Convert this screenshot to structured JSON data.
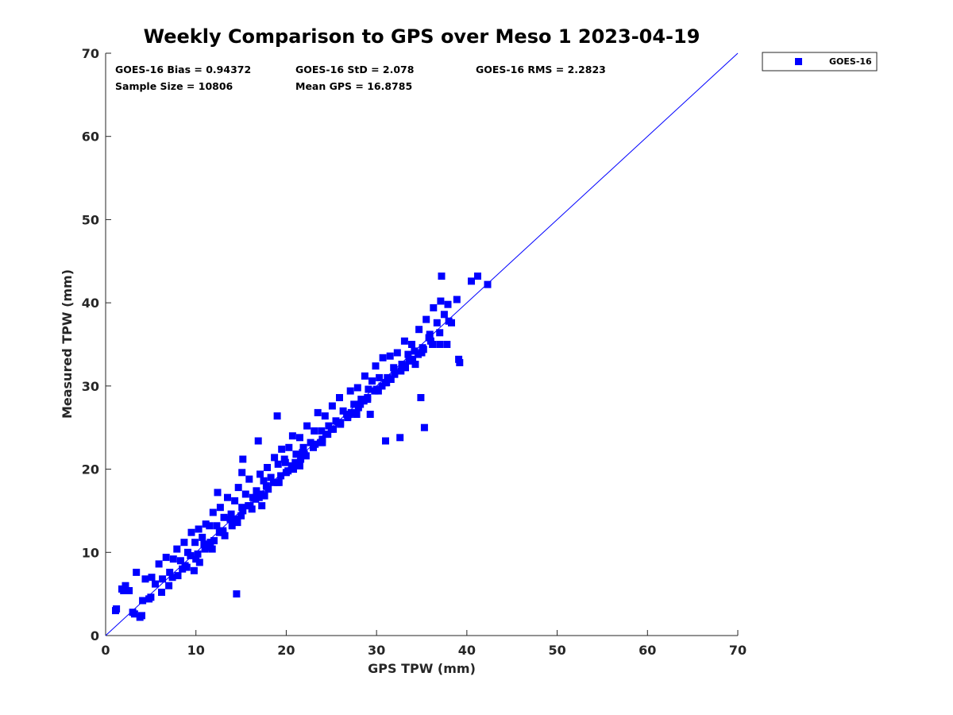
{
  "chart_data": {
    "type": "scatter",
    "title": "Weekly Comparison to GPS over Meso 1 2023-04-19",
    "xlabel": "GPS TPW (mm)",
    "ylabel": "Measured TPW (mm)",
    "xlim": [
      0,
      70
    ],
    "ylim": [
      0,
      70
    ],
    "xticks": [
      "0",
      "10",
      "20",
      "30",
      "40",
      "50",
      "60",
      "70"
    ],
    "yticks": [
      "0",
      "10",
      "20",
      "30",
      "40",
      "50",
      "60",
      "70"
    ],
    "legend": {
      "position": "outside-top-right",
      "entries": [
        "GOES-16"
      ]
    },
    "reference_line": {
      "name": "1:1 line",
      "from": [
        0,
        0
      ],
      "to": [
        70,
        70
      ],
      "color": "#0000ff"
    },
    "statistics": {
      "bias": "GOES-16 Bias = 0.94372",
      "std": "GOES-16 StD = 2.078",
      "rms": "GOES-16 RMS = 2.2823",
      "sample_size": "Sample Size = 10806",
      "mean_gps": "Mean GPS = 16.8785"
    },
    "series": [
      {
        "name": "GOES-16",
        "color": "#0000ff",
        "marker": "square",
        "x": [
          1.2,
          1.8,
          2.2,
          2.6,
          3.0,
          3.4,
          3.8,
          4.1,
          4.4,
          4.8,
          5.1,
          5.5,
          5.9,
          6.3,
          6.7,
          7.1,
          7.5,
          7.9,
          8.3,
          8.7,
          9.1,
          9.5,
          9.9,
          10.3,
          10.7,
          11.1,
          11.5,
          11.9,
          12.3,
          12.7,
          13.1,
          13.5,
          13.9,
          14.3,
          14.7,
          15.1,
          15.5,
          15.9,
          16.3,
          16.7,
          17.1,
          17.5,
          17.9,
          18.3,
          18.7,
          19.1,
          19.5,
          19.9,
          20.3,
          20.7,
          21.1,
          21.5,
          21.9,
          22.3,
          22.7,
          23.1,
          23.5,
          23.9,
          24.3,
          24.7,
          25.1,
          25.5,
          25.9,
          26.3,
          26.7,
          27.1,
          27.5,
          27.9,
          28.3,
          28.7,
          29.1,
          29.5,
          29.9,
          30.3,
          30.7,
          31.1,
          31.5,
          31.9,
          32.3,
          32.7,
          33.1,
          33.5,
          33.9,
          34.3,
          34.7,
          35.1,
          35.5,
          35.9,
          36.3,
          36.7,
          37.1,
          37.5,
          37.9,
          38.3,
          39.2,
          40.5,
          41.2,
          42.3,
          1.1,
          3.2,
          4.0,
          2.0,
          5.0,
          6.2,
          7.0,
          8.0,
          9.0,
          10.0,
          11.0,
          12.0,
          13.0,
          14.0,
          15.0,
          16.0,
          17.0,
          18.0,
          19.0,
          20.0,
          21.0,
          22.0,
          23.0,
          24.0,
          25.0,
          26.0,
          27.0,
          28.0,
          29.0,
          30.0,
          31.0,
          32.0,
          33.0,
          34.0,
          35.0,
          36.0,
          37.0,
          38.0,
          8.5,
          9.4,
          10.9,
          12.6,
          13.8,
          15.2,
          16.6,
          17.8,
          19.4,
          20.6,
          21.8,
          23.2,
          24.4,
          25.8,
          27.2,
          28.6,
          30.2,
          31.6,
          33.2,
          34.6,
          36.2,
          10.4,
          11.8,
          13.2,
          14.6,
          16.2,
          17.6,
          19.2,
          20.8,
          22.2,
          23.8,
          25.2,
          26.8,
          28.2,
          29.8,
          31.2,
          32.8,
          34.2,
          35.8,
          7.4,
          8.8,
          10.2,
          11.6,
          13.0,
          14.4,
          15.8,
          17.2,
          18.6,
          20.2,
          21.6,
          23.0,
          24.6,
          26.0,
          27.6,
          29.0,
          30.6,
          32.0,
          33.6,
          35.2,
          37.2,
          38.9,
          39.1,
          37.0,
          37.8,
          35.3,
          31.0,
          32.6,
          34.9,
          29.3,
          26.8,
          21.5,
          19.0,
          16.9,
          15.1,
          12.4,
          11.2,
          9.8,
          14.5,
          17.3,
          19.8,
          24.0,
          27.8,
          15.2
        ],
        "y": [
          3.2,
          5.6,
          6.0,
          5.4,
          2.8,
          7.6,
          2.2,
          4.2,
          6.8,
          4.4,
          7.0,
          6.2,
          8.6,
          6.8,
          9.4,
          7.6,
          9.2,
          10.4,
          9.0,
          11.2,
          10.0,
          12.4,
          11.2,
          12.8,
          11.8,
          13.4,
          13.2,
          14.8,
          13.2,
          15.4,
          14.2,
          16.6,
          14.6,
          16.2,
          17.8,
          15.4,
          17.0,
          18.8,
          16.6,
          17.4,
          19.4,
          18.6,
          20.2,
          19.0,
          21.4,
          20.6,
          22.4,
          20.8,
          22.6,
          24.0,
          21.8,
          23.8,
          22.6,
          25.2,
          23.2,
          24.6,
          26.8,
          24.6,
          26.4,
          25.2,
          27.6,
          25.8,
          28.6,
          27.0,
          26.6,
          29.4,
          27.8,
          29.8,
          28.4,
          31.2,
          29.6,
          30.6,
          32.4,
          31.0,
          33.4,
          30.4,
          33.6,
          32.2,
          34.0,
          31.8,
          35.4,
          33.8,
          35.0,
          32.6,
          36.8,
          34.6,
          38.0,
          36.2,
          39.4,
          37.6,
          40.2,
          38.6,
          39.8,
          37.6,
          32.8,
          42.6,
          43.2,
          42.2,
          3.0,
          2.6,
          2.4,
          5.4,
          4.6,
          5.2,
          6.0,
          7.2,
          8.2,
          9.2,
          10.4,
          11.4,
          12.4,
          13.2,
          14.4,
          15.6,
          16.6,
          17.6,
          18.4,
          19.6,
          20.8,
          21.8,
          22.6,
          23.6,
          24.8,
          25.6,
          26.6,
          27.4,
          28.4,
          29.6,
          30.4,
          31.4,
          32.4,
          33.2,
          34.0,
          35.4,
          36.4,
          37.8,
          8.0,
          9.6,
          11.0,
          12.4,
          14.0,
          15.0,
          16.4,
          18.0,
          19.2,
          20.4,
          22.0,
          23.0,
          24.2,
          25.6,
          26.8,
          28.2,
          29.4,
          30.8,
          32.2,
          33.8,
          35.0,
          8.8,
          10.4,
          12.0,
          13.6,
          15.2,
          16.8,
          18.4,
          20.0,
          21.6,
          23.2,
          24.8,
          26.4,
          27.8,
          29.4,
          31.0,
          32.6,
          34.2,
          35.8,
          7.0,
          8.4,
          9.8,
          11.2,
          12.6,
          14.0,
          15.6,
          17.0,
          18.4,
          19.8,
          21.2,
          22.8,
          24.2,
          25.4,
          26.8,
          28.6,
          30.0,
          31.6,
          33.0,
          34.4,
          43.2,
          40.4,
          33.2,
          35.0,
          35.0,
          25.0,
          23.4,
          23.8,
          28.6,
          26.6,
          26.2,
          20.4,
          26.4,
          23.4,
          19.6,
          17.2,
          10.6,
          7.8,
          5.0,
          15.6,
          21.2,
          23.2,
          26.6,
          21.2
        ]
      }
    ]
  }
}
